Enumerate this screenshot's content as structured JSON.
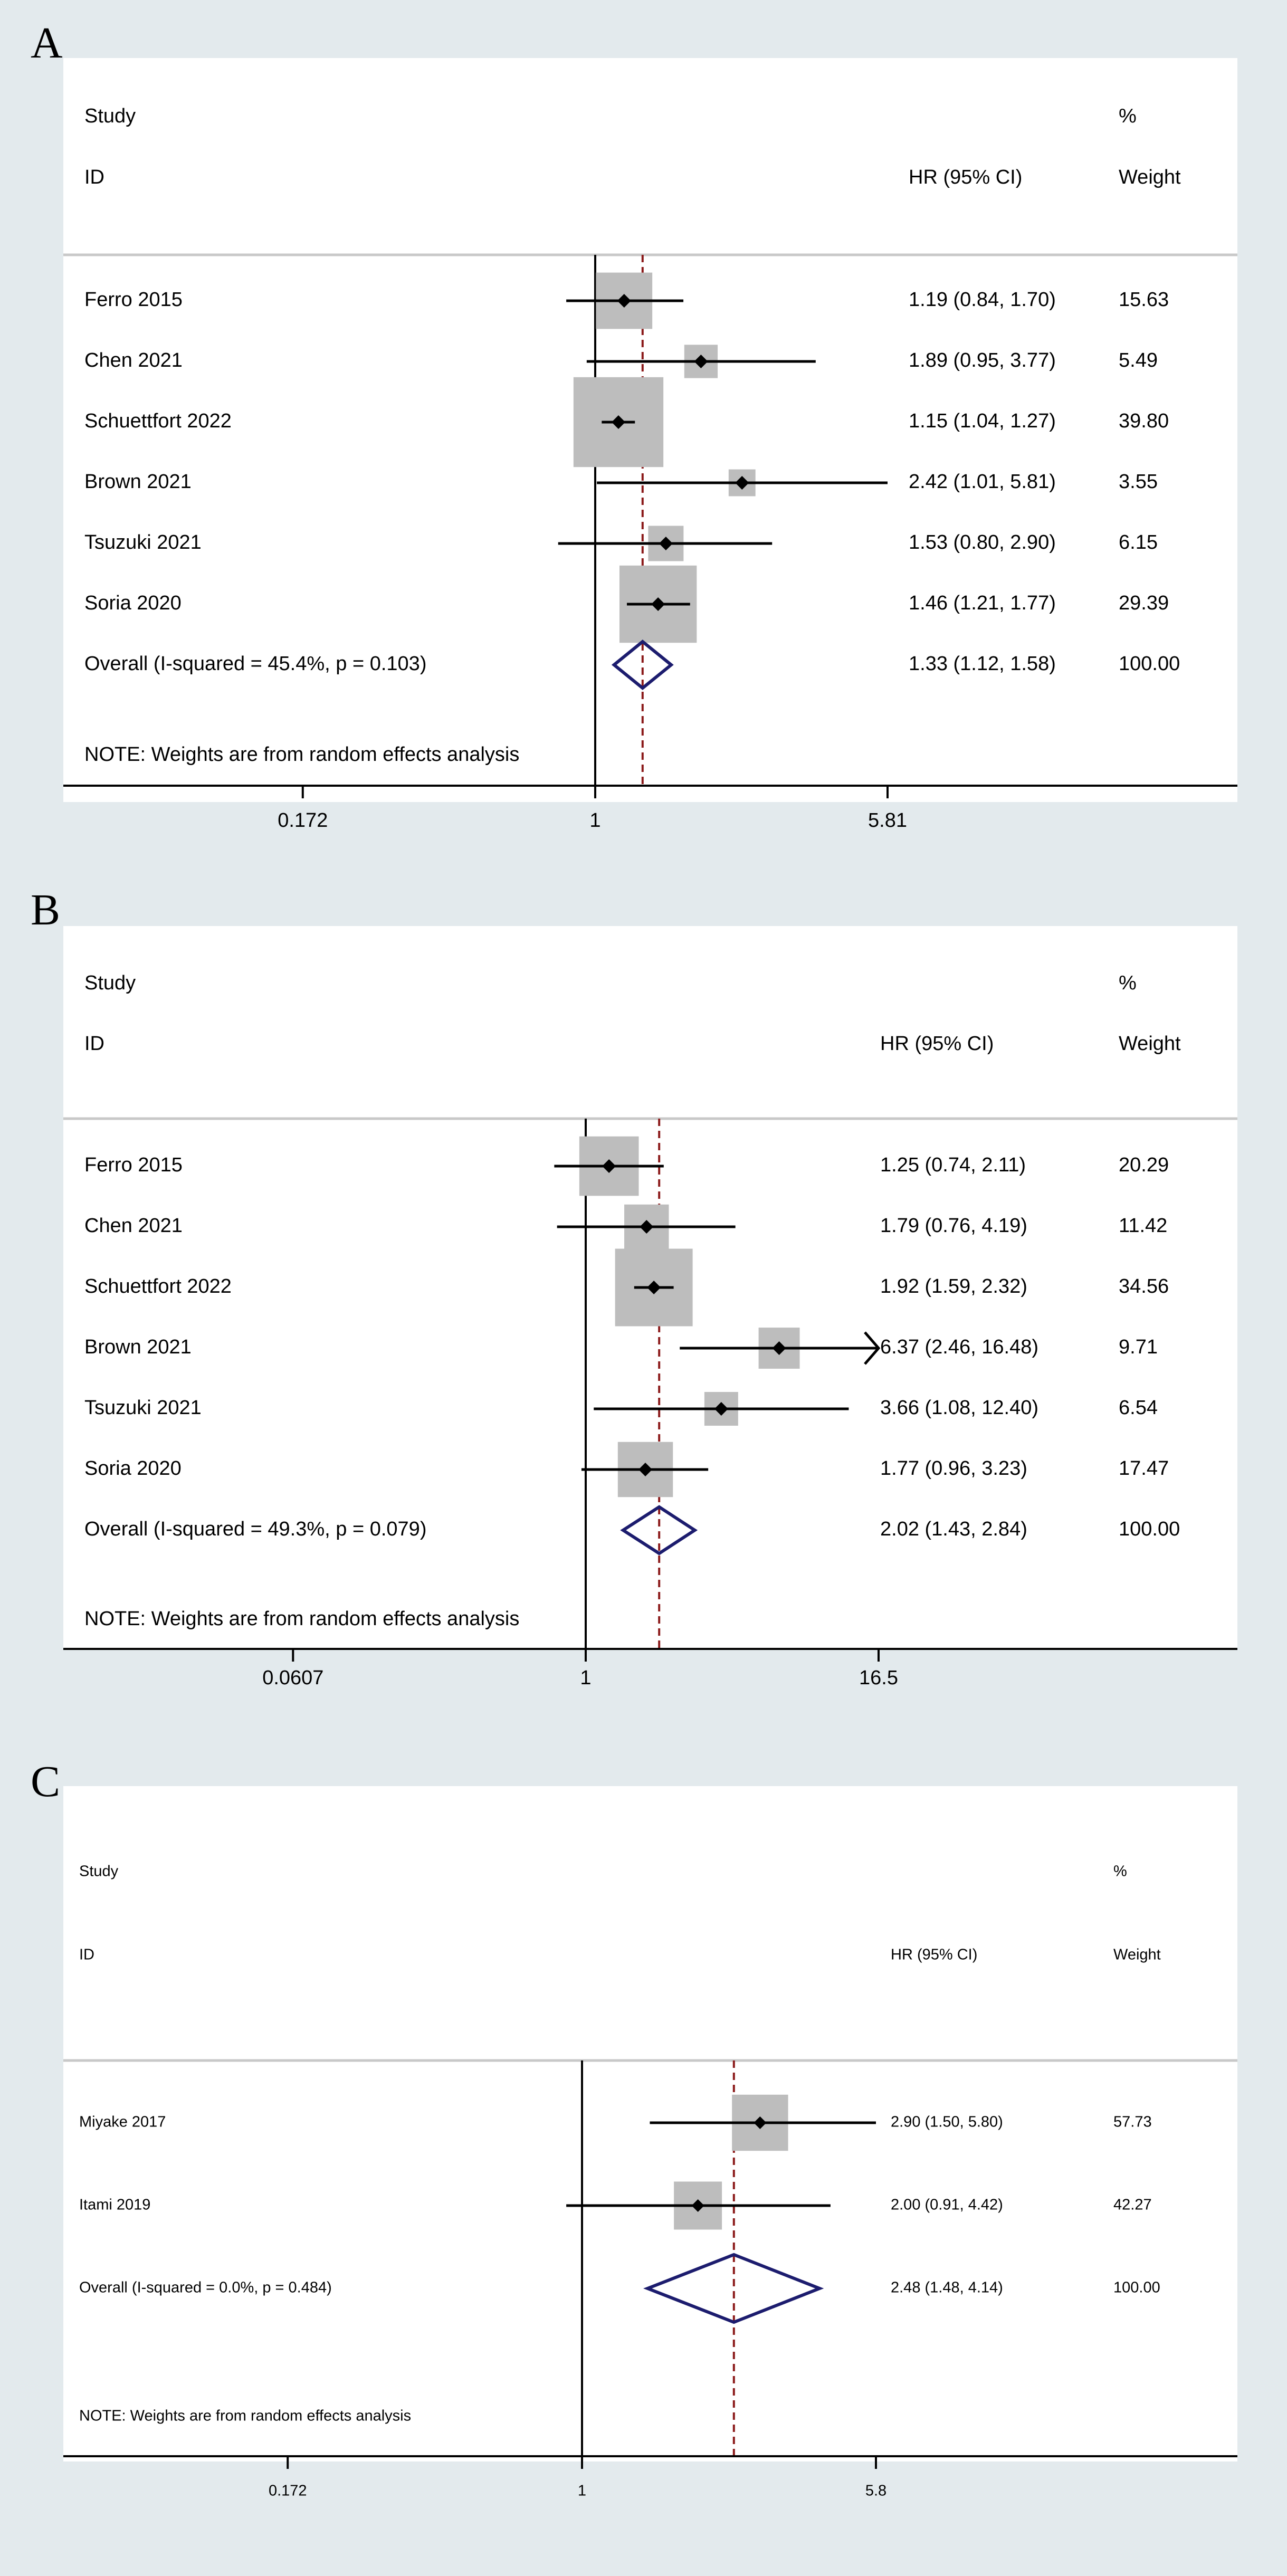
{
  "chart_data": [
    {
      "type": "forest",
      "panel": "A",
      "header": {
        "study": "Study",
        "id": "ID",
        "hr": "HR (95% CI)",
        "pct": "%",
        "weight": "Weight"
      },
      "note": "NOTE: Weights are from random effects analysis",
      "scale": "log",
      "axis": {
        "min": 0.172,
        "max": 5.81,
        "ticks": [
          "0.172",
          "1",
          "5.81"
        ],
        "tick_values": [
          0.172,
          1,
          5.81
        ]
      },
      "null_line": 1,
      "overall_line": 1.33,
      "studies": [
        {
          "label": "Ferro 2015",
          "hr": 1.19,
          "lo": 0.84,
          "hi": 1.7,
          "text": "1.19 (0.84, 1.70)",
          "weight": 15.63,
          "weight_text": "15.63"
        },
        {
          "label": "Chen 2021",
          "hr": 1.89,
          "lo": 0.95,
          "hi": 3.77,
          "text": "1.89 (0.95, 3.77)",
          "weight": 5.49,
          "weight_text": "5.49"
        },
        {
          "label": "Schuettfort 2022",
          "hr": 1.15,
          "lo": 1.04,
          "hi": 1.27,
          "text": "1.15 (1.04, 1.27)",
          "weight": 39.8,
          "weight_text": "39.80"
        },
        {
          "label": "Brown 2021",
          "hr": 2.42,
          "lo": 1.01,
          "hi": 5.81,
          "text": "2.42 (1.01, 5.81)",
          "weight": 3.55,
          "weight_text": "3.55"
        },
        {
          "label": "Tsuzuki 2021",
          "hr": 1.53,
          "lo": 0.8,
          "hi": 2.9,
          "text": "1.53 (0.80, 2.90)",
          "weight": 6.15,
          "weight_text": "6.15"
        },
        {
          "label": "Soria 2020",
          "hr": 1.46,
          "lo": 1.21,
          "hi": 1.77,
          "text": "1.46 (1.21, 1.77)",
          "weight": 29.39,
          "weight_text": "29.39"
        }
      ],
      "overall": {
        "label": "Overall  (I-squared = 45.4%, p = 0.103)",
        "hr": 1.33,
        "lo": 1.12,
        "hi": 1.58,
        "text": "1.33 (1.12, 1.58)",
        "weight_text": "100.00"
      }
    },
    {
      "type": "forest",
      "panel": "B",
      "header": {
        "study": "Study",
        "id": "ID",
        "hr": "HR (95% CI)",
        "pct": "%",
        "weight": "Weight"
      },
      "note": "NOTE: Weights are from random effects analysis",
      "scale": "log",
      "axis": {
        "min": 0.0607,
        "max": 16.5,
        "ticks": [
          "0.0607",
          "1",
          "16.5"
        ],
        "tick_values": [
          0.0607,
          1,
          16.5
        ]
      },
      "null_line": 1,
      "overall_line": 2.02,
      "studies": [
        {
          "label": "Ferro 2015",
          "hr": 1.25,
          "lo": 0.74,
          "hi": 2.11,
          "text": "1.25 (0.74, 2.11)",
          "weight": 20.29,
          "weight_text": "20.29"
        },
        {
          "label": "Chen 2021",
          "hr": 1.79,
          "lo": 0.76,
          "hi": 4.19,
          "text": "1.79 (0.76, 4.19)",
          "weight": 11.42,
          "weight_text": "11.42"
        },
        {
          "label": "Schuettfort 2022",
          "hr": 1.92,
          "lo": 1.59,
          "hi": 2.32,
          "text": "1.92 (1.59, 2.32)",
          "weight": 34.56,
          "weight_text": "34.56"
        },
        {
          "label": "Brown 2021",
          "hr": 6.37,
          "lo": 2.46,
          "hi": 16.48,
          "text": "6.37 (2.46, 16.48)",
          "weight": 9.71,
          "weight_text": "9.71",
          "arrow": true
        },
        {
          "label": "Tsuzuki 2021",
          "hr": 3.66,
          "lo": 1.08,
          "hi": 12.4,
          "text": "3.66 (1.08, 12.40)",
          "weight": 6.54,
          "weight_text": "6.54"
        },
        {
          "label": "Soria 2020",
          "hr": 1.77,
          "lo": 0.96,
          "hi": 3.23,
          "text": "1.77 (0.96, 3.23)",
          "weight": 17.47,
          "weight_text": "17.47"
        }
      ],
      "overall": {
        "label": "Overall  (I-squared = 49.3%, p = 0.079)",
        "hr": 2.02,
        "lo": 1.43,
        "hi": 2.84,
        "text": "2.02 (1.43, 2.84)",
        "weight_text": "100.00"
      }
    },
    {
      "type": "forest",
      "panel": "C",
      "header": {
        "study": "Study",
        "id": "ID",
        "hr": "HR (95% CI)",
        "pct": "%",
        "weight": "Weight"
      },
      "note": "NOTE: Weights are from random effects analysis",
      "scale": "log",
      "axis": {
        "min": 0.172,
        "max": 5.8,
        "ticks": [
          "0.172",
          "1",
          "5.8"
        ],
        "tick_values": [
          0.172,
          1,
          5.8
        ]
      },
      "null_line": 1,
      "overall_line": 2.48,
      "studies": [
        {
          "label": "Miyake 2017",
          "hr": 2.9,
          "lo": 1.5,
          "hi": 5.8,
          "text": "2.90 (1.50, 5.80)",
          "weight": 57.73,
          "weight_text": "57.73"
        },
        {
          "label": "Itami 2019",
          "hr": 2.0,
          "lo": 0.91,
          "hi": 4.42,
          "text": "2.00 (0.91, 4.42)",
          "weight": 42.27,
          "weight_text": "42.27"
        }
      ],
      "overall": {
        "label": "Overall  (I-squared = 0.0%, p = 0.484)",
        "hr": 2.48,
        "lo": 1.48,
        "hi": 4.14,
        "text": "2.48 (1.48, 4.14)",
        "weight_text": "100.00"
      }
    }
  ],
  "colors": {
    "page_bg": "#e3eaed",
    "plot_bg": "#ffffff",
    "axis": "#000000",
    "header_rule": "#c8c8c8",
    "overall_line": "#8b1a1a",
    "diamond": "#1c1c6e",
    "weight_box": "#bdbdbd",
    "point": "#000000",
    "ci_line": "#000000"
  }
}
